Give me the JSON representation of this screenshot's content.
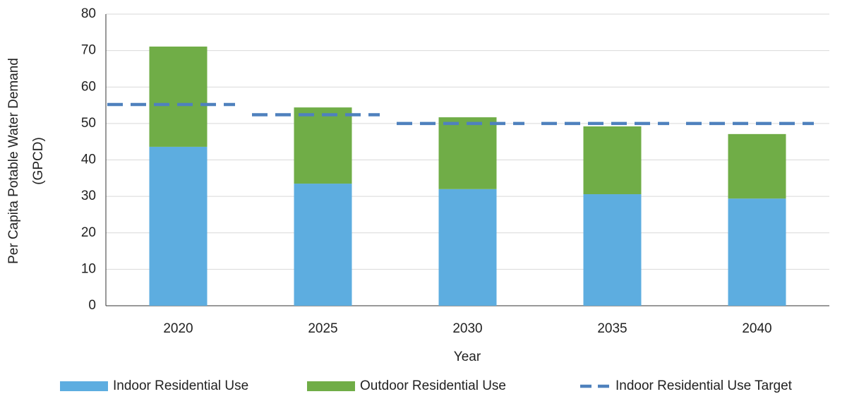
{
  "chart_data": {
    "type": "bar",
    "ylabel": [
      "Per Capita Potable Water Demand",
      "(GPCD)"
    ],
    "xlabel": "Year",
    "categories": [
      "2020",
      "2025",
      "2030",
      "2035",
      "2040"
    ],
    "series": [
      {
        "name": "Indoor Residential Use",
        "color": "#5dade0",
        "values": [
          43.6,
          33.5,
          32.0,
          30.6,
          29.4
        ]
      },
      {
        "name": "Outdoor Residential Use",
        "color": "#70ad47",
        "values": [
          27.5,
          20.9,
          19.7,
          18.6,
          17.7
        ]
      },
      {
        "name": "Indoor Residential Use Target",
        "color": "#4f81bd",
        "type": "line",
        "dashed": true,
        "values": [
          55.2,
          52.4,
          50,
          50,
          50
        ]
      }
    ],
    "ylim": [
      0,
      80
    ],
    "yticks": [
      0,
      10,
      20,
      30,
      40,
      50,
      60,
      70,
      80
    ],
    "grid": true,
    "legend": "bottom"
  }
}
